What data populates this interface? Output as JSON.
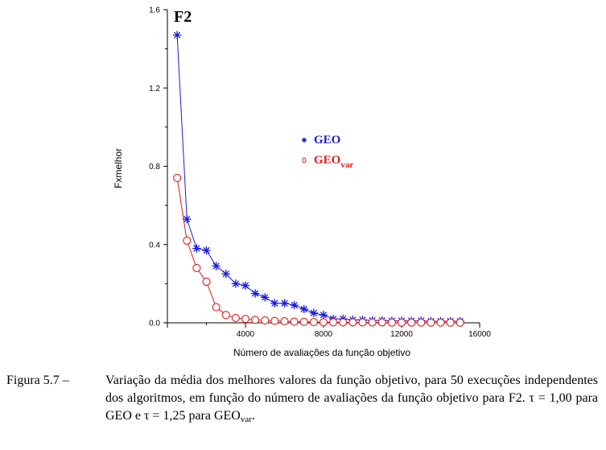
{
  "chart_data": {
    "type": "line",
    "title": "F2",
    "xlabel": "Número de avaliações da função objetivo",
    "ylabel": "Fxmelhor",
    "xlim": [
      0,
      16000
    ],
    "ylim": [
      0,
      1.6
    ],
    "x_ticks": [
      "4000",
      "8000",
      "12000",
      "16000"
    ],
    "y_ticks": [
      "0.0",
      "0.4",
      "0.8",
      "1.2",
      "1.6"
    ],
    "grid": false,
    "legend_position": "center-right",
    "series": [
      {
        "name": "GEO",
        "color": "#1a1ad9",
        "marker": "asterisk",
        "x": [
          500,
          1000,
          1500,
          2000,
          2500,
          3000,
          3500,
          4000,
          4500,
          5000,
          5500,
          6000,
          6500,
          7000,
          7500,
          8000,
          8500,
          9000,
          9500,
          10000,
          10500,
          11000,
          11500,
          12000,
          12500,
          13000,
          13500,
          14000,
          14500,
          15000
        ],
        "y": [
          1.47,
          0.53,
          0.38,
          0.37,
          0.29,
          0.25,
          0.2,
          0.19,
          0.15,
          0.13,
          0.1,
          0.1,
          0.09,
          0.07,
          0.05,
          0.04,
          0.02,
          0.02,
          0.015,
          0.015,
          0.012,
          0.012,
          0.01,
          0.01,
          0.01,
          0.01,
          0.008,
          0.008,
          0.008,
          0.008
        ]
      },
      {
        "name": "GEO",
        "name_sub": "var",
        "color": "#e01a1a",
        "marker": "circle",
        "x": [
          500,
          1000,
          1500,
          2000,
          2500,
          3000,
          3500,
          4000,
          4500,
          5000,
          5500,
          6000,
          6500,
          7000,
          7500,
          8000,
          8500,
          9000,
          9500,
          10000,
          10500,
          11000,
          11500,
          12000,
          12500,
          13000,
          13500,
          14000,
          14500,
          15000
        ],
        "y": [
          0.74,
          0.42,
          0.28,
          0.21,
          0.08,
          0.04,
          0.025,
          0.02,
          0.015,
          0.012,
          0.01,
          0.008,
          0.006,
          0.005,
          0.004,
          0.003,
          0.003,
          0.002,
          0.002,
          0.002,
          0.002,
          0.002,
          0.001,
          0.001,
          0.001,
          0.001,
          0.001,
          0.001,
          0.001,
          0.001
        ]
      }
    ]
  },
  "caption": {
    "label": "Figura 5.7 –",
    "text_main": "Variação da média dos melhores valores da função objetivo, para 50 execuções independentes dos algoritmos, em função do número de avaliações da função objetivo para F2. τ = 1,00 para GEO e τ = 1,25 para GEO",
    "text_sub": "var",
    "text_end": "."
  }
}
